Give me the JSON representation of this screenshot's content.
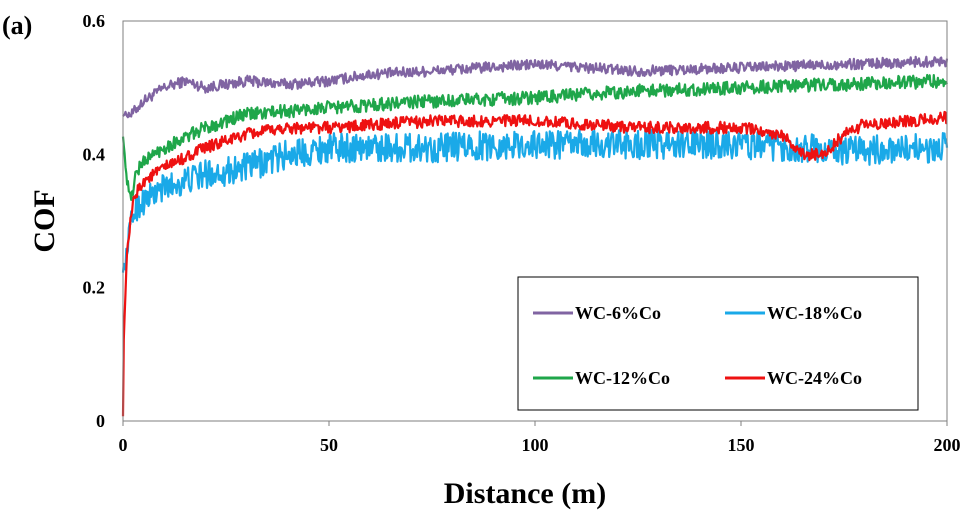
{
  "panel_label": "(a)",
  "chart_data": {
    "type": "line",
    "title": "",
    "xlabel": "Distance (m)",
    "ylabel": "COF",
    "xlim": [
      0,
      200
    ],
    "ylim": [
      0,
      0.6
    ],
    "x_ticks": [
      0,
      50,
      100,
      150,
      200
    ],
    "y_ticks": [
      0,
      0.2,
      0.4,
      0.6
    ],
    "x_tick_labels": [
      "0",
      "50",
      "100",
      "150",
      "200"
    ],
    "y_tick_labels": [
      "0",
      "0.2",
      "0.4",
      "0.6"
    ],
    "grid": false,
    "legend": {
      "placement": "bottom-right",
      "entries": [
        "WC-6%Co",
        "WC-18%Co",
        "WC-12%Co",
        "WC-24%Co"
      ]
    },
    "series": [
      {
        "name": "WC-6%Co",
        "color": "#8064a2",
        "x": [
          0,
          2,
          5,
          10,
          15,
          20,
          30,
          40,
          50,
          60,
          75,
          100,
          125,
          150,
          175,
          200
        ],
        "y": [
          0.46,
          0.46,
          0.48,
          0.5,
          0.51,
          0.5,
          0.51,
          0.505,
          0.51,
          0.52,
          0.525,
          0.535,
          0.525,
          0.53,
          0.535,
          0.54
        ],
        "noise": 0.008
      },
      {
        "name": "WC-18%Co",
        "color": "#1aa9e8",
        "x": [
          0,
          0.5,
          1,
          2,
          3,
          5,
          10,
          20,
          30,
          40,
          50,
          75,
          100,
          125,
          150,
          175,
          200
        ],
        "y": [
          0.23,
          0.23,
          0.26,
          0.3,
          0.32,
          0.33,
          0.35,
          0.37,
          0.38,
          0.4,
          0.41,
          0.41,
          0.415,
          0.415,
          0.415,
          0.405,
          0.41
        ],
        "noise": 0.022
      },
      {
        "name": "WC-12%Co",
        "color": "#1fa64a",
        "x": [
          0,
          0.5,
          1,
          2,
          3,
          5,
          10,
          20,
          30,
          40,
          50,
          75,
          100,
          125,
          150,
          175,
          200
        ],
        "y": [
          0.43,
          0.39,
          0.36,
          0.33,
          0.37,
          0.39,
          0.41,
          0.44,
          0.46,
          0.465,
          0.47,
          0.48,
          0.485,
          0.495,
          0.5,
          0.505,
          0.51
        ],
        "noise": 0.01
      },
      {
        "name": "WC-24%Co",
        "color": "#ee1111",
        "x": [
          0,
          0.2,
          0.5,
          1,
          2,
          3,
          5,
          10,
          20,
          30,
          40,
          50,
          75,
          100,
          125,
          150,
          160,
          165,
          170,
          175,
          180,
          200
        ],
        "y": [
          0.01,
          0.12,
          0.18,
          0.25,
          0.31,
          0.34,
          0.36,
          0.38,
          0.41,
          0.43,
          0.44,
          0.44,
          0.45,
          0.45,
          0.44,
          0.44,
          0.43,
          0.4,
          0.4,
          0.43,
          0.445,
          0.455
        ],
        "noise": 0.009
      }
    ]
  }
}
